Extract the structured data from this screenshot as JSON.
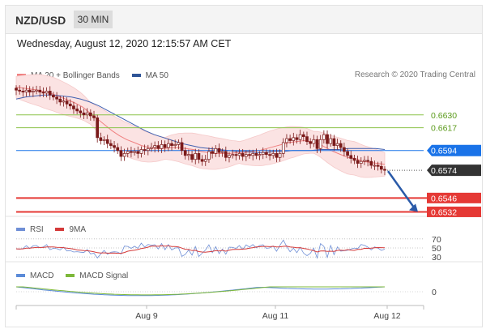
{
  "header": {
    "symbol": "NZD/USD",
    "interval": "30 MIN"
  },
  "datetime": "Wednesday, August 12, 2020 12:15:57 AM CET",
  "legend": {
    "ma20": "MA 20 + Bollinger Bands",
    "ma50": "MA 50",
    "research": "Research © 2020 Trading Central",
    "rsi": "RSI",
    "rsi_ma": "9MA",
    "macd": "MACD",
    "macd_signal": "MACD Signal"
  },
  "colors": {
    "candle": "#7a1a1a",
    "ma20": "#f08080",
    "ma50": "#4060b0",
    "band_fill": "#fbe3e3",
    "resistance": "#8bc34a",
    "pivot": "#1a73e8",
    "support": "#e53935",
    "current": "#333333",
    "rsi": "#6f8fd6",
    "rsi_ma": "#d43a3a",
    "macd": "#5b8bd8",
    "macd_signal": "#7db83a"
  },
  "chart_data": [
    {
      "type": "candlestick",
      "title": "NZD/USD 30 MIN",
      "x_ticks": [
        "Aug 9",
        "Aug 11",
        "Aug 12"
      ],
      "ylim": [
        0.6525,
        0.6665
      ],
      "levels": [
        {
          "label": "0.6630",
          "value": 0.663,
          "kind": "resistance"
        },
        {
          "label": "0.6617",
          "value": 0.6617,
          "kind": "resistance"
        },
        {
          "label": "0.6594",
          "value": 0.6594,
          "kind": "pivot"
        },
        {
          "label": "0.6574",
          "value": 0.6574,
          "kind": "current"
        },
        {
          "label": "0.6546",
          "value": 0.6546,
          "kind": "support"
        },
        {
          "label": "0.6532",
          "value": 0.6532,
          "kind": "support"
        }
      ],
      "close": [
        0.6655,
        0.6654,
        0.6653,
        0.6655,
        0.6653,
        0.6654,
        0.6655,
        0.6653,
        0.6652,
        0.6654,
        0.665,
        0.6648,
        0.6646,
        0.6643,
        0.6644,
        0.6641,
        0.6639,
        0.6636,
        0.6634,
        0.6632,
        0.663,
        0.6632,
        0.6629,
        0.6627,
        0.6607,
        0.6604,
        0.6605,
        0.6601,
        0.6599,
        0.6597,
        0.6594,
        0.6588,
        0.6591,
        0.6593,
        0.6592,
        0.6593,
        0.6591,
        0.6595,
        0.6594,
        0.6596,
        0.6597,
        0.6599,
        0.6596,
        0.66,
        0.6597,
        0.6601,
        0.6599,
        0.66,
        0.6602,
        0.6594,
        0.6589,
        0.659,
        0.6585,
        0.6591,
        0.6585,
        0.6583,
        0.6585,
        0.6593,
        0.6591,
        0.6596,
        0.6592,
        0.6593,
        0.6587,
        0.6589,
        0.659,
        0.6589,
        0.6591,
        0.6588,
        0.659,
        0.6589,
        0.6591,
        0.6589,
        0.659,
        0.6592,
        0.659,
        0.6589,
        0.6591,
        0.6587,
        0.6591,
        0.6602,
        0.6606,
        0.6604,
        0.6607,
        0.6605,
        0.661,
        0.6608,
        0.6603,
        0.6601,
        0.6605,
        0.6596,
        0.6605,
        0.661,
        0.6601,
        0.6606,
        0.6599,
        0.6601,
        0.6597,
        0.6593,
        0.6589,
        0.6586,
        0.6584,
        0.6581,
        0.6583,
        0.6584,
        0.6583,
        0.6579,
        0.6579,
        0.6578,
        0.6575,
        0.6574
      ],
      "ma20": [
        0.6658,
        0.6657,
        0.6656,
        0.6655,
        0.6653,
        0.6651,
        0.6648,
        0.6645,
        0.6642,
        0.6638,
        0.6632,
        0.6626,
        0.662,
        0.6614,
        0.6609,
        0.6605,
        0.6602,
        0.6599,
        0.6597,
        0.6596,
        0.6596,
        0.6597,
        0.6597,
        0.6596,
        0.6595,
        0.6593,
        0.6592,
        0.6591,
        0.6591,
        0.6591,
        0.6592,
        0.6592,
        0.6593,
        0.6594,
        0.6596,
        0.6598,
        0.66,
        0.6602,
        0.6603,
        0.6604,
        0.6603,
        0.6601,
        0.6597,
        0.6593,
        0.659,
        0.6587,
        0.6586,
        0.6583,
        0.6582,
        0.6581,
        0.658
      ],
      "ma50": [
        0.6646,
        0.6648,
        0.6649,
        0.665,
        0.665,
        0.6649,
        0.6648,
        0.6646,
        0.6643,
        0.6639,
        0.6634,
        0.6629,
        0.6624,
        0.6619,
        0.6614,
        0.661,
        0.6607,
        0.6604,
        0.6601,
        0.6599,
        0.6597,
        0.6596,
        0.6595,
        0.6594,
        0.6593,
        0.6593,
        0.6592,
        0.6592,
        0.6593,
        0.6593,
        0.6594,
        0.6594,
        0.6594,
        0.6595,
        0.6595,
        0.6595,
        0.6596,
        0.6596,
        0.6596,
        0.6596,
        0.6595
      ],
      "forecast_arrow": {
        "from": 0.6574,
        "to": 0.6537
      }
    },
    {
      "type": "line",
      "title": "RSI",
      "series": [
        "RSI",
        "9MA"
      ],
      "y_ticks": [
        "70",
        "50",
        "30"
      ],
      "ylim": [
        25,
        75
      ]
    },
    {
      "type": "line",
      "title": "MACD",
      "series": [
        "MACD",
        "MACD Signal"
      ],
      "y_ticks": [
        "0"
      ]
    }
  ]
}
